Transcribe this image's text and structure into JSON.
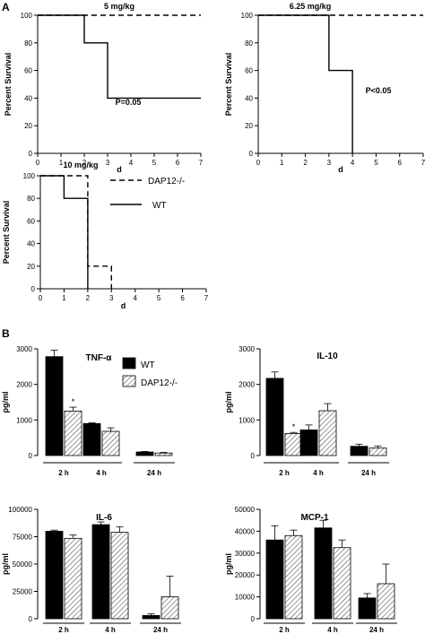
{
  "panel_labels": {
    "a": "A",
    "b": "B"
  },
  "chart_data": [
    {
      "type": "line",
      "id": "surv-5",
      "title": "5 mg/kg",
      "xlabel": "d",
      "ylabel": "Percent Survival",
      "xlim": [
        0,
        7
      ],
      "ylim": [
        0,
        100
      ],
      "xticks": [
        0,
        1,
        2,
        3,
        4,
        5,
        6,
        7
      ],
      "yticks": [
        0,
        20,
        40,
        60,
        80,
        100
      ],
      "annotation": "P=0.05",
      "series": [
        {
          "style": "dashed",
          "points": [
            [
              0,
              100
            ],
            [
              7,
              100
            ]
          ]
        },
        {
          "style": "solid",
          "points": [
            [
              0,
              100
            ],
            [
              2,
              100
            ],
            [
              2,
              80
            ],
            [
              3,
              80
            ],
            [
              3,
              40
            ],
            [
              7,
              40
            ]
          ]
        }
      ]
    },
    {
      "type": "line",
      "id": "surv-625",
      "title": "6.25 mg/kg",
      "xlabel": "d",
      "ylabel": "Percent Survival",
      "xlim": [
        0,
        7
      ],
      "ylim": [
        0,
        100
      ],
      "xticks": [
        0,
        1,
        2,
        3,
        4,
        5,
        6,
        7
      ],
      "yticks": [
        0,
        20,
        40,
        60,
        80,
        100
      ],
      "annotation": "P<0.05",
      "series": [
        {
          "style": "dashed",
          "points": [
            [
              0,
              100
            ],
            [
              7,
              100
            ]
          ]
        },
        {
          "style": "solid",
          "points": [
            [
              0,
              100
            ],
            [
              3,
              100
            ],
            [
              3,
              60
            ],
            [
              4,
              60
            ],
            [
              4,
              0
            ]
          ]
        }
      ]
    },
    {
      "type": "line",
      "id": "surv-10",
      "title": "10 mg/kg",
      "xlabel": "d",
      "ylabel": "Percent Survival",
      "xlim": [
        0,
        7
      ],
      "ylim": [
        0,
        100
      ],
      "xticks": [
        0,
        1,
        2,
        3,
        4,
        5,
        6,
        7
      ],
      "yticks": [
        0,
        20,
        40,
        60,
        80,
        100
      ],
      "legend": [
        {
          "label": "DAP12-/-",
          "style": "dashed"
        },
        {
          "label": "WT",
          "style": "solid"
        }
      ],
      "series": [
        {
          "name": "DAP12-/-",
          "style": "dashed",
          "points": [
            [
              0,
              100
            ],
            [
              2,
              100
            ],
            [
              2,
              20
            ],
            [
              3,
              20
            ],
            [
              3,
              0
            ]
          ]
        },
        {
          "name": "WT",
          "style": "solid",
          "points": [
            [
              0,
              100
            ],
            [
              1,
              100
            ],
            [
              1,
              80
            ],
            [
              2,
              80
            ],
            [
              2,
              0
            ]
          ]
        }
      ]
    },
    {
      "type": "bar",
      "id": "tnf",
      "title": "TNF-α",
      "ylabel": "pg/ml",
      "ylim": [
        0,
        3000
      ],
      "yticks": [
        0,
        1000,
        2000,
        3000
      ],
      "categories": [
        "2 h",
        "4 h",
        "24 h"
      ],
      "legend": [
        {
          "label": "WT",
          "fill": "solid"
        },
        {
          "label": "DAP12-/-",
          "fill": "hatched"
        }
      ],
      "series": [
        {
          "name": "WT",
          "fill": "solid",
          "values": [
            2780,
            900,
            100
          ],
          "errors": [
            180,
            20,
            15
          ]
        },
        {
          "name": "DAP12-/-",
          "fill": "hatched",
          "values": [
            1250,
            680,
            70
          ],
          "errors": [
            110,
            100,
            20
          ]
        }
      ],
      "star": "*",
      "star_category": 0
    },
    {
      "type": "bar",
      "id": "il10",
      "title": "IL-10",
      "ylabel": "pg/ml",
      "ylim": [
        0,
        3000
      ],
      "yticks": [
        0,
        1000,
        2000,
        3000
      ],
      "categories": [
        "2 h",
        "4 h",
        "24 h"
      ],
      "series": [
        {
          "name": "WT",
          "fill": "solid",
          "values": [
            2170,
            720,
            260
          ],
          "errors": [
            180,
            140,
            60
          ]
        },
        {
          "name": "DAP12-/-",
          "fill": "hatched",
          "values": [
            620,
            1260,
            210
          ],
          "errors": [
            30,
            200,
            60
          ]
        }
      ],
      "star": "*",
      "star_category": 0
    },
    {
      "type": "bar",
      "id": "il6",
      "title": "IL-6",
      "ylabel": "pg/ml",
      "ylim": [
        0,
        100000
      ],
      "yticks": [
        0,
        25000,
        50000,
        75000,
        100000
      ],
      "categories": [
        "2 h",
        "4 h",
        "24 h"
      ],
      "series": [
        {
          "name": "WT",
          "fill": "solid",
          "values": [
            80000,
            86000,
            3000
          ],
          "errors": [
            1000,
            2500,
            1500
          ]
        },
        {
          "name": "DAP12-/-",
          "fill": "hatched",
          "values": [
            73500,
            79000,
            20000
          ],
          "errors": [
            3000,
            5000,
            19000
          ]
        }
      ]
    },
    {
      "type": "bar",
      "id": "mcp1",
      "title": "MCP-1",
      "ylabel": "pg/ml",
      "ylim": [
        0,
        50000
      ],
      "yticks": [
        0,
        10000,
        20000,
        30000,
        40000,
        50000
      ],
      "categories": [
        "2 h",
        "4 h",
        "24 h"
      ],
      "series": [
        {
          "name": "WT",
          "fill": "solid",
          "values": [
            36000,
            41500,
            9500
          ],
          "errors": [
            6500,
            3500,
            2000
          ]
        },
        {
          "name": "DAP12-/-",
          "fill": "hatched",
          "values": [
            38000,
            32500,
            16000
          ],
          "errors": [
            2500,
            3500,
            9000
          ]
        }
      ]
    }
  ]
}
